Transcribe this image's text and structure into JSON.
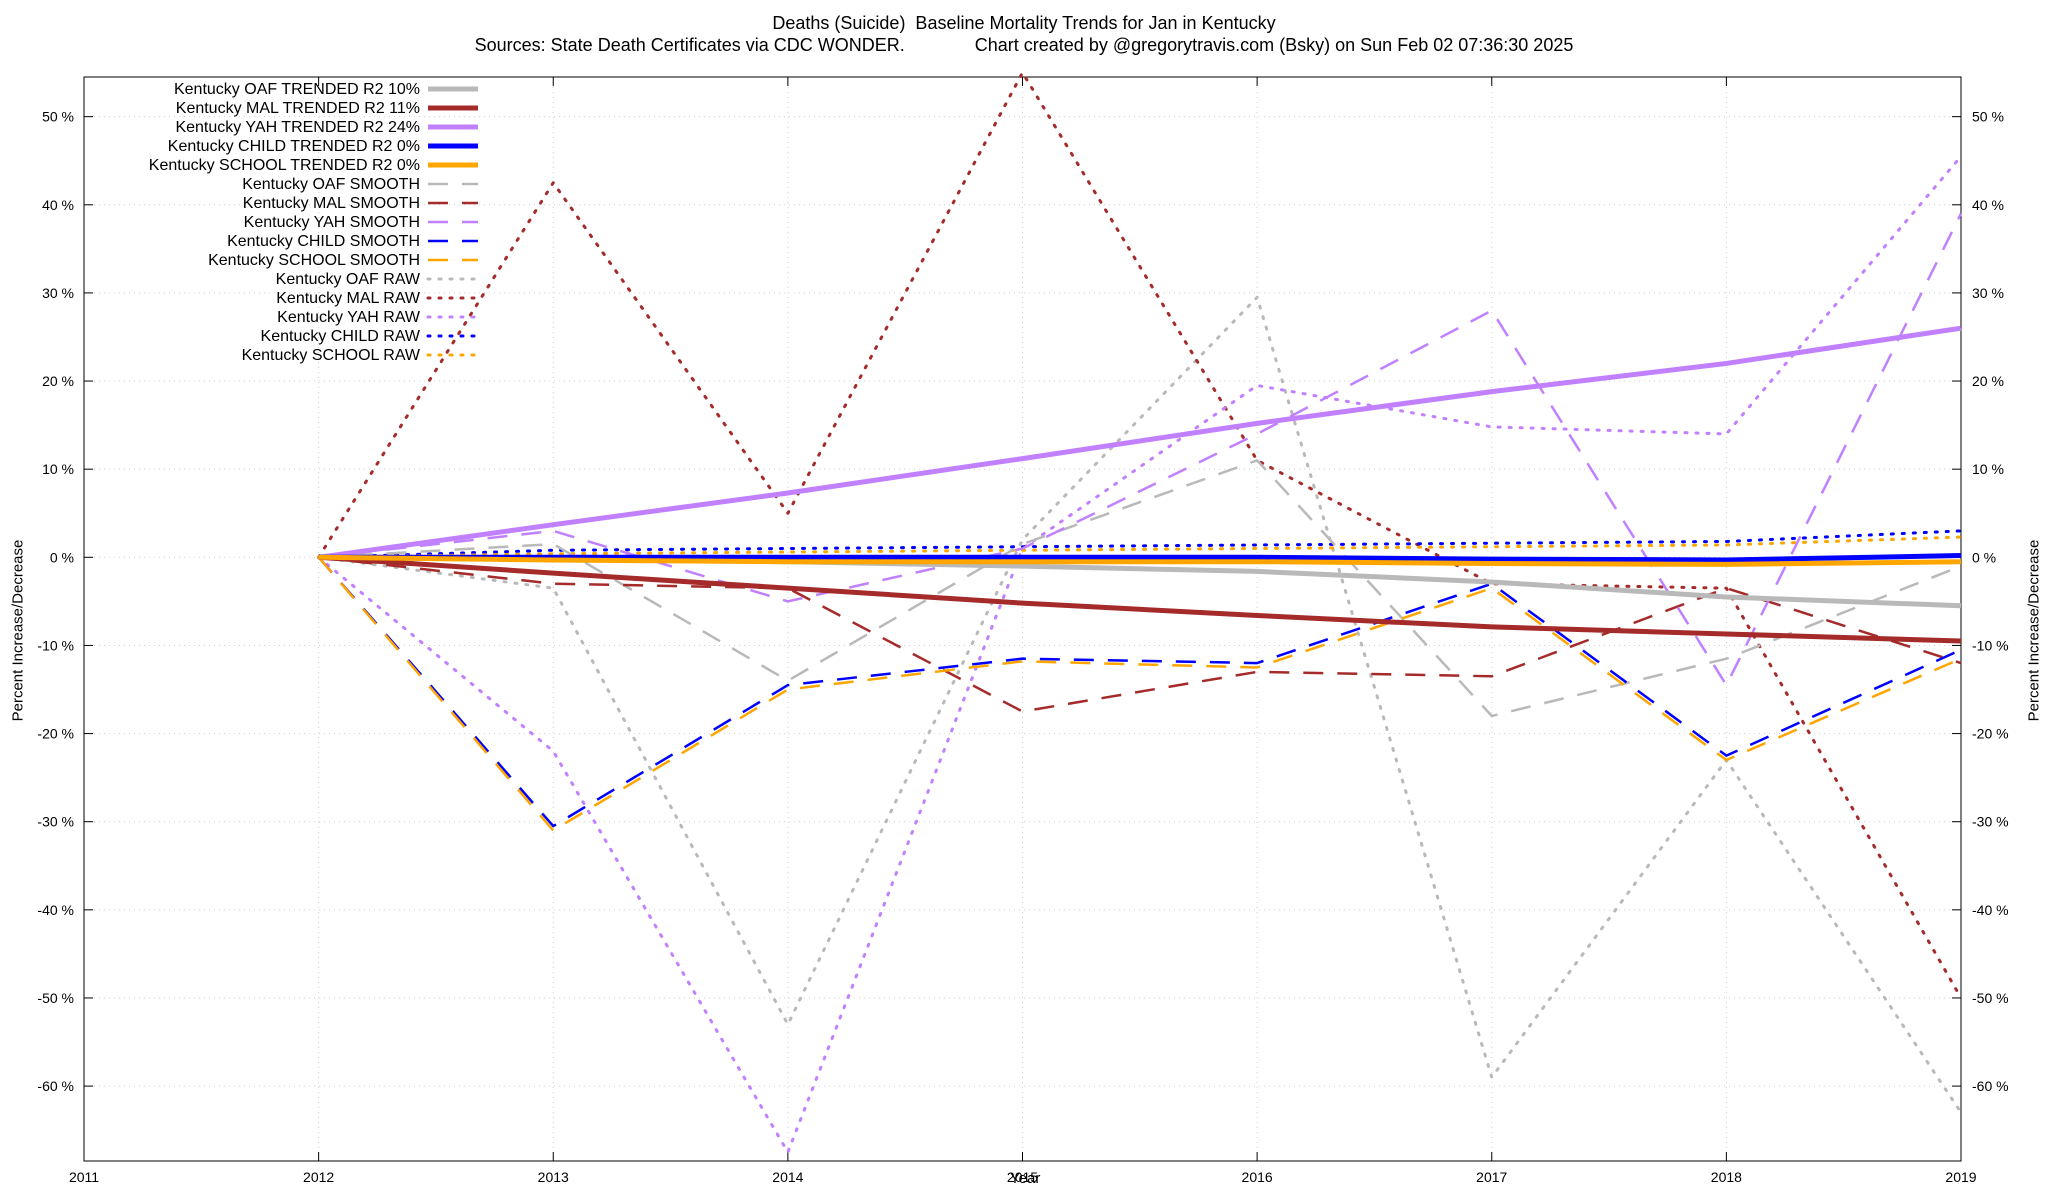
{
  "chart_data": {
    "type": "line",
    "title": "Deaths (Suicide)  Baseline Mortality Trends for Jan in Kentucky",
    "subtitle": "Sources: State Death Certificates via CDC WONDER.              Chart created by @gregorytravis.com (Bsky) on Sun Feb 02 07:36:30 2025",
    "xlabel": "Year",
    "ylabel": "Percent Increase/Decrease",
    "y2label": "Percent Increase/Decrease",
    "xlim": [
      2011,
      2019
    ],
    "ylim": [
      -68.5,
      54.5
    ],
    "x_ticks": [
      2011,
      2012,
      2013,
      2014,
      2015,
      2016,
      2017,
      2018,
      2019
    ],
    "x_tick_labels": [
      "2011",
      "2012",
      "2013",
      "2014",
      "2015",
      "2016",
      "2017",
      "2018",
      "2019"
    ],
    "y_ticks": [
      50,
      40,
      30,
      20,
      10,
      0,
      -10,
      -20,
      -30,
      -40,
      -50,
      -60
    ],
    "y_tick_labels": [
      "50 %",
      "40 %",
      "30 %",
      "20 %",
      "10 %",
      "0 %",
      "-10 %",
      "-20 %",
      "-30 %",
      "-40 %",
      "-50 %",
      "-60 %"
    ],
    "grid": true,
    "legend_position": "top-left",
    "x": [
      2012,
      2013,
      2014,
      2015,
      2016,
      2017,
      2018,
      2019
    ],
    "series": [
      {
        "name": "Kentucky OAF TRENDED R2  10%",
        "color": "#b9b9b9",
        "style": "trend",
        "values": [
          0,
          -0.2,
          -0.5,
          -1.0,
          -1.6,
          -2.8,
          -4.5,
          -5.5
        ]
      },
      {
        "name": "Kentucky MAL TRENDED R2  11%",
        "color": "#a52a2a",
        "style": "trend",
        "values": [
          0,
          -1.8,
          -3.5,
          -5.2,
          -6.6,
          -7.9,
          -8.7,
          -9.5
        ]
      },
      {
        "name": "Kentucky YAH TRENDED R2  24%",
        "color": "#c080ff",
        "style": "trend",
        "values": [
          0,
          3.7,
          7.3,
          11.2,
          15.2,
          18.8,
          22.0,
          26.0
        ]
      },
      {
        "name": "Kentucky CHILD TRENDED R2   0%",
        "color": "#0000ff",
        "style": "trend",
        "values": [
          0,
          0,
          0,
          0,
          0,
          -0.2,
          -0.3,
          0.2
        ]
      },
      {
        "name": "Kentucky SCHOOL TRENDED R2   0%",
        "color": "#ffa500",
        "style": "trend",
        "values": [
          0,
          -0.3,
          -0.5,
          -0.5,
          -0.5,
          -0.7,
          -0.8,
          -0.5
        ]
      },
      {
        "name": "Kentucky OAF SMOOTH",
        "color": "#b9b9b9",
        "style": "smooth",
        "values": [
          0,
          1.5,
          -14.0,
          1.5,
          11.0,
          -18.0,
          -11.5,
          -1.0
        ]
      },
      {
        "name": "Kentucky MAL SMOOTH",
        "color": "#a52a2a",
        "style": "smooth",
        "values": [
          0,
          -3.0,
          -3.5,
          -17.5,
          -13.0,
          -13.5,
          -3.5,
          -12.0
        ]
      },
      {
        "name": "Kentucky YAH SMOOTH",
        "color": "#c080ff",
        "style": "smooth",
        "values": [
          0,
          3.0,
          -5.0,
          1.0,
          14.0,
          28.0,
          -14.5,
          39.0
        ]
      },
      {
        "name": "Kentucky CHILD SMOOTH",
        "color": "#0000ff",
        "style": "smooth",
        "values": [
          0,
          -30.5,
          -14.5,
          -11.5,
          -12.0,
          -3.0,
          -22.5,
          -10.5
        ]
      },
      {
        "name": "Kentucky SCHOOL SMOOTH",
        "color": "#ffa500",
        "style": "smooth",
        "values": [
          0,
          -31.0,
          -15.0,
          -11.8,
          -12.5,
          -3.5,
          -23.0,
          -11.5
        ]
      },
      {
        "name": "Kentucky OAF RAW",
        "color": "#b9b9b9",
        "style": "raw",
        "values": [
          0,
          -3.5,
          -53.0,
          2.0,
          29.5,
          -59.0,
          -23.0,
          -63.0
        ]
      },
      {
        "name": "Kentucky MAL RAW",
        "color": "#a52a2a",
        "style": "raw",
        "values": [
          0,
          42.5,
          5.0,
          55.0,
          11.0,
          -3.0,
          -3.5,
          -50.0
        ]
      },
      {
        "name": "Kentucky YAH RAW",
        "color": "#c080ff",
        "style": "raw",
        "values": [
          0,
          -22.0,
          -67.5,
          1.0,
          19.5,
          14.8,
          14.0,
          45.5
        ]
      },
      {
        "name": "Kentucky CHILD RAW",
        "color": "#0000ff",
        "style": "raw",
        "values": [
          0,
          0.8,
          1.0,
          1.2,
          1.4,
          1.6,
          1.8,
          3.0
        ]
      },
      {
        "name": "Kentucky SCHOOL RAW",
        "color": "#ffa500",
        "style": "raw",
        "values": [
          0,
          0.4,
          0.6,
          0.8,
          1.0,
          1.2,
          1.4,
          2.3
        ]
      }
    ]
  }
}
